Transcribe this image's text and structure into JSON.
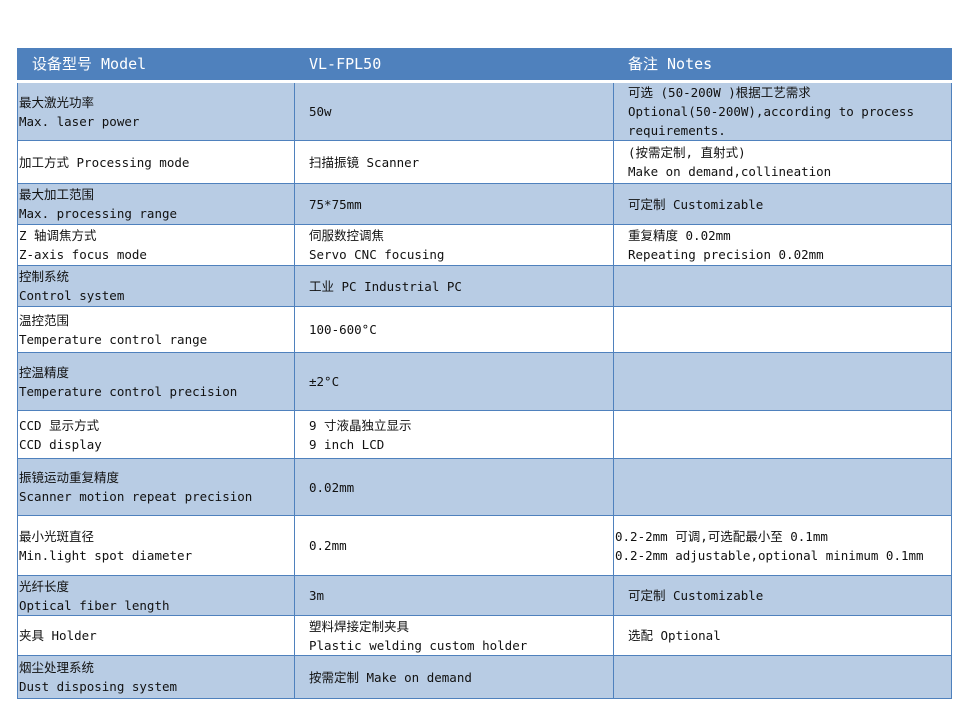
{
  "header": {
    "model": "设备型号 Model",
    "value": "VL-FPL50",
    "notes": "备注 Notes"
  },
  "rows": [
    {
      "name": [
        "最大激光功率",
        "Max. laser power"
      ],
      "value": [
        "50w"
      ],
      "notes": [
        "可选 (50-200W )根据工艺需求",
        "Optional(50-200W),according to process requirements."
      ]
    },
    {
      "name": [
        "加工方式 Processing mode"
      ],
      "value": [
        "扫描振镜 Scanner"
      ],
      "notes": [
        "(按需定制, 直射式)",
        "Make on demand,collineation"
      ]
    },
    {
      "name": [
        "最大加工范围",
        "Max. processing range"
      ],
      "value": [
        "75*75mm"
      ],
      "notes": [
        "可定制 Customizable"
      ]
    },
    {
      "name": [
        "Z 轴调焦方式",
        "Z-axis focus mode"
      ],
      "value": [
        "伺服数控调焦",
        "Servo CNC focusing"
      ],
      "notes": [
        "重复精度 0.02mm",
        "Repeating precision 0.02mm"
      ]
    },
    {
      "name": [
        "控制系统",
        "Control system"
      ],
      "value": [
        "工业 PC Industrial PC"
      ],
      "notes": []
    },
    {
      "name": [
        "温控范围",
        "Temperature control range"
      ],
      "value": [
        "100-600°C"
      ],
      "notes": []
    },
    {
      "name": [
        "控温精度",
        "Temperature control precision"
      ],
      "value": [
        "±2°C"
      ],
      "notes": []
    },
    {
      "name": [
        "CCD 显示方式",
        "CCD display"
      ],
      "value": [
        "9 寸液晶独立显示",
        "9 inch LCD"
      ],
      "notes": []
    },
    {
      "name": [
        "振镜运动重复精度",
        "Scanner motion repeat precision"
      ],
      "value": [
        "0.02mm"
      ],
      "notes": []
    },
    {
      "name": [
        "最小光斑直径",
        "Min.light spot diameter"
      ],
      "value": [
        "0.2mm"
      ],
      "notes": [
        "0.2-2mm 可调,可选配最小至 0.1mm",
        "0.2-2mm adjustable,optional minimum 0.1mm"
      ]
    },
    {
      "name": [
        "光纤长度",
        "Optical fiber length"
      ],
      "value": [
        "3m"
      ],
      "notes": [
        "可定制 Customizable"
      ]
    },
    {
      "name": [
        "夹具 Holder"
      ],
      "value": [
        "塑料焊接定制夹具",
        "Plastic welding custom holder"
      ],
      "notes": [
        "选配 Optional"
      ]
    },
    {
      "name": [
        "烟尘处理系统",
        "Dust disposing system"
      ],
      "value": [
        "按需定制 Make on demand"
      ],
      "notes": []
    }
  ]
}
